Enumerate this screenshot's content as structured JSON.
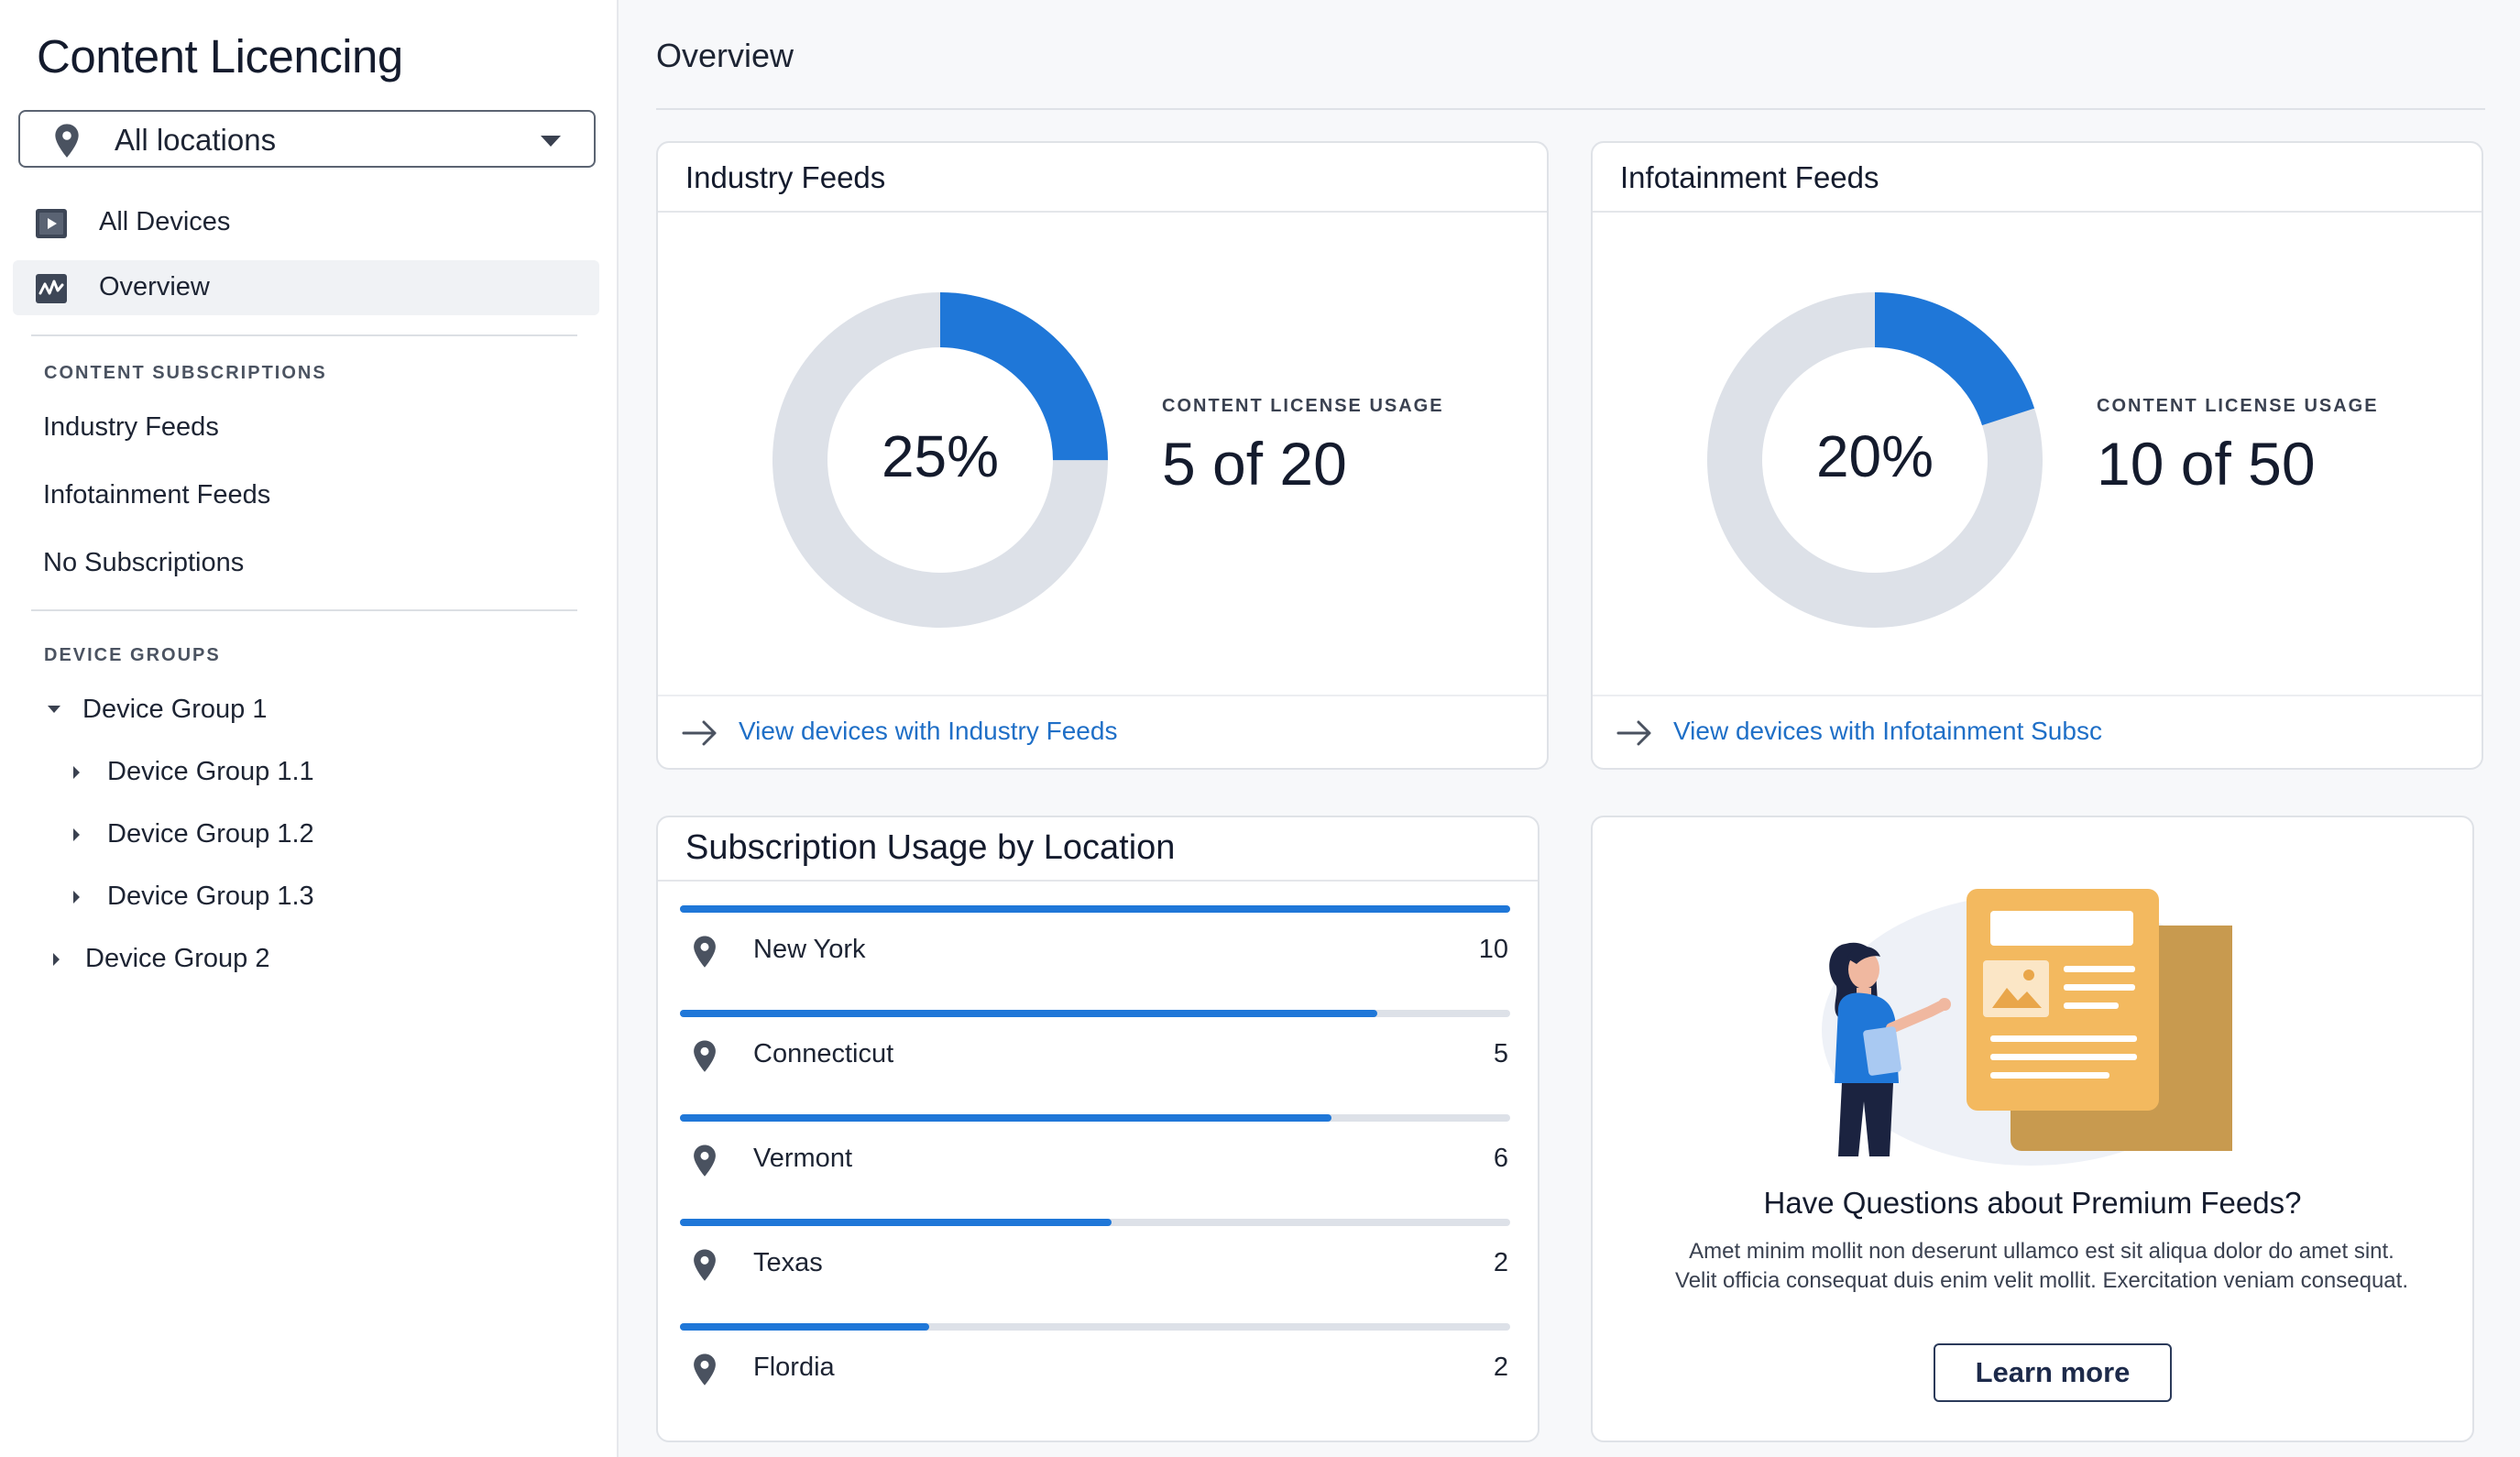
{
  "sidebar": {
    "app_title": "Content Licencing",
    "location_select": {
      "value": "All locations"
    },
    "nav": [
      {
        "label": "All Devices",
        "icon": "play-screen-icon"
      },
      {
        "label": "Overview",
        "icon": "activity-chart-icon",
        "active": true
      }
    ],
    "subscriptions_heading": "CONTENT SUBSCRIPTIONS",
    "subscriptions": [
      "Industry Feeds",
      "Infotainment Feeds",
      "No Subscriptions"
    ],
    "groups_heading": "DEVICE GROUPS",
    "groups": [
      {
        "label": "Device Group 1",
        "expanded": true
      },
      {
        "label": "Device Group 1.1"
      },
      {
        "label": "Device Group 1.2"
      },
      {
        "label": "Device Group 1.3"
      },
      {
        "label": "Device Group 2",
        "expanded": false
      }
    ]
  },
  "main": {
    "page_title": "Overview",
    "industry": {
      "title": "Industry Feeds",
      "percent_label": "25%",
      "percent": 0.25,
      "usage_label": "CONTENT LICENSE USAGE",
      "usage_value": "5 of 20",
      "link": "View devices with Industry Feeds"
    },
    "infotainment": {
      "title": "Infotainment Feeds",
      "percent_label": "20%",
      "percent": 0.2,
      "usage_label": "CONTENT LICENSE USAGE",
      "usage_value": "10 of 50",
      "link": "View devices with Infotainment Subsc"
    },
    "usage_by_location": {
      "title": "Subscription Usage by Location",
      "rows": [
        {
          "name": "New York",
          "count": "10",
          "fill": 1.0
        },
        {
          "name": "Connecticut",
          "count": "5",
          "fill": 0.84
        },
        {
          "name": "Vermont",
          "count": "6",
          "fill": 0.785
        },
        {
          "name": "Texas",
          "count": "2",
          "fill": 0.52
        },
        {
          "name": "Flordia",
          "count": "2",
          "fill": 0.3
        }
      ]
    },
    "promo": {
      "title": "Have Questions about Premium Feeds?",
      "text_line1": "Amet minim mollit non deserunt ullamco est sit aliqua dolor do amet sint.",
      "text_line2": "Velit officia consequat duis enim velit mollit. Exercitation veniam consequat.",
      "button": "Learn more"
    }
  },
  "colors": {
    "accent": "#1f77d8",
    "track": "#dde1e8",
    "link": "#1f6fc7"
  }
}
